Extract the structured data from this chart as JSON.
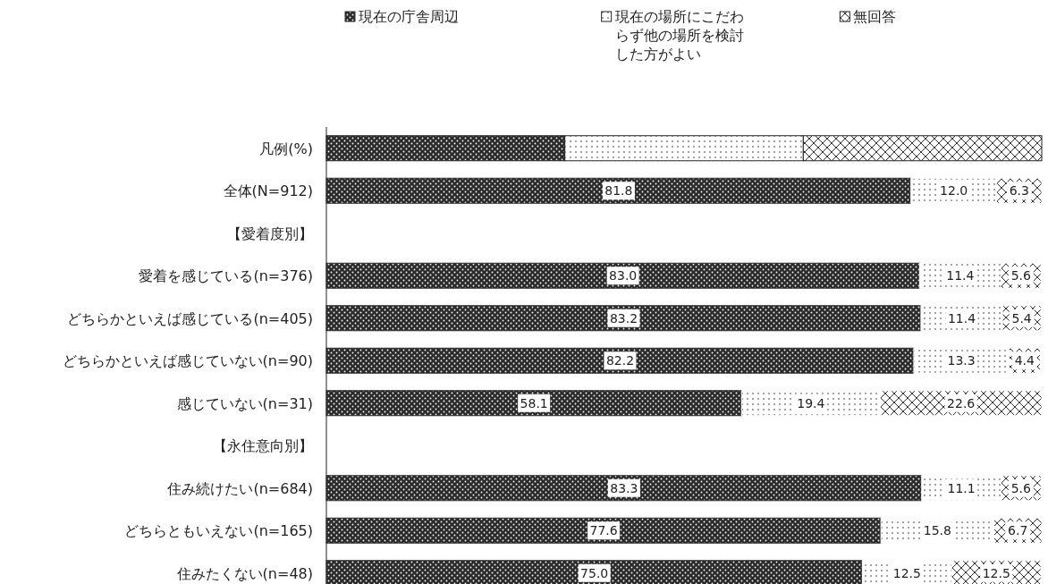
{
  "chart_data": {
    "type": "bar",
    "orientation": "horizontal",
    "stacked": true,
    "legend": "top",
    "legend_title": "凡例(%)",
    "categories": [
      "全体(N=912)",
      "【愛着度別】",
      "愛着を感じている(n=376)",
      "どちらかといえば感じている(n=405)",
      "どちらかといえば感じていない(n=90)",
      "感じていない(n=31)",
      "【永住意向別】",
      "住み続けたい(n=684)",
      "どちらともいえない(n=165)",
      "住みたくない(n=48)"
    ],
    "series": [
      {
        "name": "現在の庁舎周辺",
        "color": "#2b2b2b",
        "values": [
          81.8,
          null,
          83.0,
          83.2,
          82.2,
          58.1,
          null,
          83.3,
          77.6,
          75.0
        ],
        "value_labels": [
          "81.8",
          null,
          "83.0",
          "83.2",
          "82.2",
          "58.1",
          null,
          "83.3",
          "77.6",
          "75.0"
        ]
      },
      {
        "name": "現在の場所にこだわらず他の場所を検討した方がよい",
        "color": "#ffffff",
        "values": [
          12.0,
          null,
          11.4,
          11.4,
          13.3,
          19.4,
          null,
          11.1,
          15.8,
          12.5
        ],
        "value_labels": [
          "12.0",
          null,
          "11.4",
          "11.4",
          "13.3",
          "19.4",
          null,
          "11.1",
          "15.8",
          "12.5"
        ]
      },
      {
        "name": "無回答",
        "color": "#ffffff",
        "values": [
          6.3,
          null,
          5.6,
          5.4,
          4.4,
          22.6,
          null,
          5.6,
          6.7,
          12.5
        ],
        "value_labels": [
          "6.3",
          null,
          "5.6",
          "5.4",
          "4.4",
          "22.6",
          null,
          "5.6",
          "6.7",
          "12.5"
        ]
      }
    ]
  }
}
